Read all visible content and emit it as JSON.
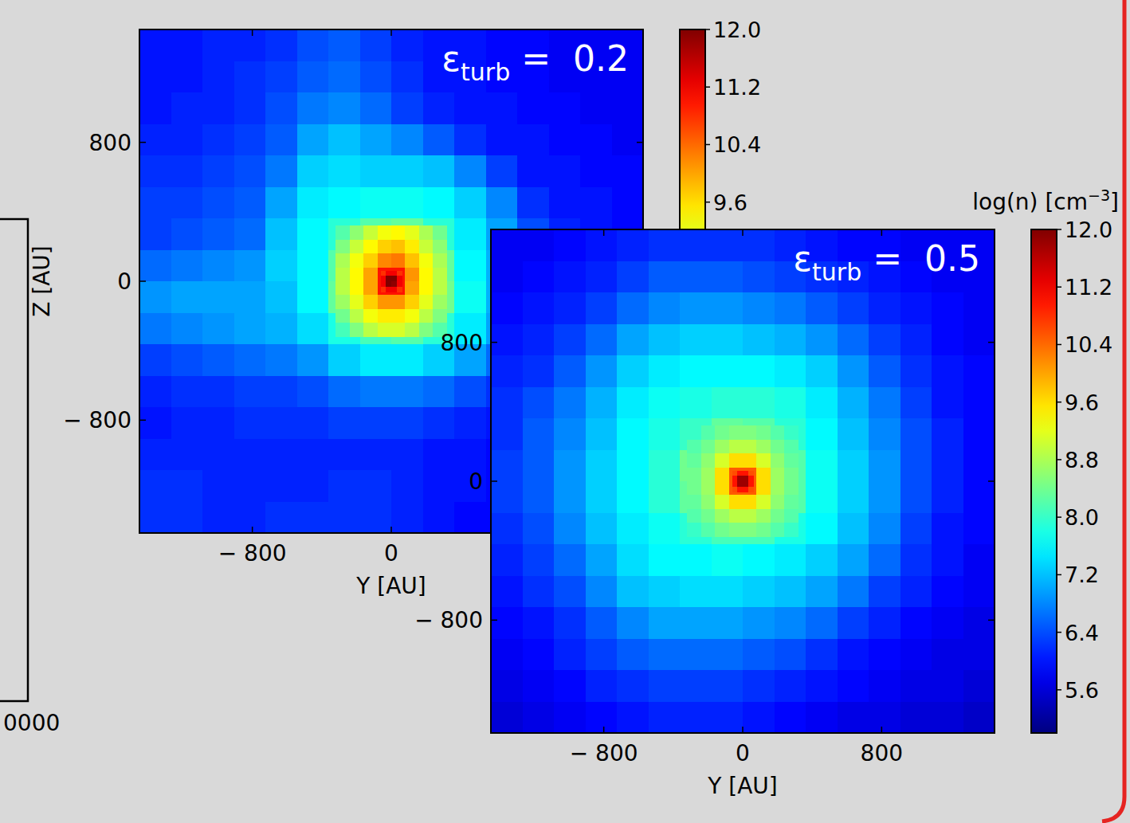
{
  "chart_data": [
    {
      "type": "heatmap",
      "title": {
        "main": "ε",
        "sub": "turb",
        "rest": " =  0.2"
      },
      "xlabel": "Y [AU]",
      "ylabel": "Z [AU]",
      "xlim": [
        -1450,
        1450
      ],
      "ylim": [
        -1450,
        1450
      ],
      "xticks": [
        {
          "value": -800,
          "label": "− 800"
        },
        0
      ],
      "yticks": [
        800,
        0,
        {
          "value": -800,
          "label": "− 800"
        }
      ],
      "colorbar": {
        "range": [
          5,
          12
        ],
        "ticks": [
          {
            "value": 12,
            "label": "12.0"
          },
          11.2,
          10.4,
          9.6
        ]
      },
      "layers": [
        {
          "xlim": [
            -1450,
            1450
          ],
          "ylim": [
            -1450,
            1450
          ],
          "values": [
            [
              6.0,
              6.0,
              6.1,
              6.1,
              6.2,
              6.4,
              6.5,
              6.3,
              6.1,
              6.0,
              6.0,
              5.9,
              5.9,
              5.8,
              5.8,
              5.8
            ],
            [
              6.0,
              6.0,
              6.1,
              6.2,
              6.3,
              6.5,
              6.6,
              6.4,
              6.2,
              6.0,
              6.0,
              5.9,
              5.9,
              5.8,
              5.8,
              5.8
            ],
            [
              6.0,
              6.1,
              6.1,
              6.2,
              6.4,
              6.7,
              6.8,
              6.6,
              6.3,
              6.1,
              6.0,
              6.0,
              5.9,
              5.9,
              5.8,
              5.8
            ],
            [
              6.1,
              6.1,
              6.2,
              6.3,
              6.5,
              7.0,
              7.2,
              7.0,
              6.8,
              6.5,
              6.2,
              6.0,
              6.0,
              5.9,
              5.9,
              5.8
            ],
            [
              6.2,
              6.2,
              6.3,
              6.4,
              6.7,
              7.3,
              7.4,
              7.3,
              7.3,
              7.2,
              6.8,
              6.3,
              6.0,
              6.0,
              5.9,
              5.9
            ],
            [
              6.3,
              6.3,
              6.4,
              6.5,
              7.0,
              7.5,
              7.6,
              7.7,
              7.7,
              7.6,
              7.3,
              6.8,
              6.2,
              6.0,
              6.0,
              5.9
            ],
            [
              6.3,
              6.4,
              6.5,
              6.6,
              7.2,
              7.6,
              7.9,
              8.2,
              8.3,
              7.9,
              7.5,
              7.0,
              6.4,
              6.1,
              6.0,
              5.9
            ],
            [
              6.6,
              6.7,
              6.8,
              6.9,
              7.3,
              7.6,
              8.2,
              9.0,
              9.0,
              8.3,
              7.6,
              7.1,
              6.5,
              6.1,
              6.0,
              6.0
            ],
            [
              6.9,
              7.0,
              7.0,
              7.0,
              7.2,
              7.6,
              8.3,
              9.0,
              9.0,
              8.4,
              7.7,
              7.1,
              6.5,
              6.1,
              6.0,
              6.0
            ],
            [
              6.7,
              6.8,
              6.9,
              7.0,
              7.1,
              7.4,
              7.8,
              8.1,
              8.2,
              7.9,
              7.5,
              7.0,
              6.4,
              6.1,
              6.0,
              5.9
            ],
            [
              6.3,
              6.4,
              6.5,
              6.6,
              6.7,
              6.9,
              7.3,
              7.5,
              7.5,
              7.3,
              7.0,
              6.6,
              6.2,
              6.0,
              5.9,
              5.9
            ],
            [
              6.1,
              6.2,
              6.2,
              6.3,
              6.3,
              6.4,
              6.6,
              6.7,
              6.7,
              6.6,
              6.4,
              6.2,
              6.0,
              5.9,
              5.9,
              5.8
            ],
            [
              6.0,
              6.1,
              6.1,
              6.2,
              6.2,
              6.2,
              6.3,
              6.3,
              6.3,
              6.2,
              6.1,
              6.0,
              5.9,
              5.8,
              5.8,
              5.8
            ],
            [
              6.1,
              6.1,
              6.1,
              6.1,
              6.1,
              6.1,
              6.1,
              6.1,
              6.1,
              6.0,
              6.0,
              5.9,
              5.8,
              5.8,
              5.8,
              5.8
            ],
            [
              6.2,
              6.2,
              6.1,
              6.1,
              6.1,
              6.1,
              6.2,
              6.2,
              6.1,
              6.0,
              6.0,
              5.9,
              5.8,
              5.8,
              5.8,
              5.8
            ],
            [
              6.2,
              6.2,
              6.1,
              6.1,
              6.2,
              6.2,
              6.2,
              6.2,
              6.1,
              6.0,
              5.9,
              5.9,
              5.8,
              5.8,
              5.8,
              5.8
            ]
          ]
        },
        {
          "xlim": [
            -320,
            320
          ],
          "ylim": [
            -320,
            320
          ],
          "values": [
            [
              8.2,
              8.6,
              9.0,
              9.3,
              9.4,
              9.2,
              8.8,
              8.4
            ],
            [
              8.5,
              9.0,
              9.4,
              9.7,
              9.8,
              9.5,
              9.0,
              8.6
            ],
            [
              8.8,
              9.3,
              9.7,
              10.2,
              10.3,
              9.8,
              9.3,
              8.8
            ],
            [
              8.9,
              9.4,
              10.0,
              11.0,
              11.0,
              10.1,
              9.4,
              8.9
            ],
            [
              8.9,
              9.4,
              10.0,
              11.0,
              11.0,
              10.0,
              9.4,
              8.9
            ],
            [
              8.7,
              9.2,
              9.7,
              10.1,
              10.1,
              9.7,
              9.2,
              8.7
            ],
            [
              8.4,
              8.9,
              9.3,
              9.5,
              9.5,
              9.3,
              8.9,
              8.5
            ],
            [
              8.1,
              8.5,
              8.9,
              9.1,
              9.1,
              8.9,
              8.5,
              8.2
            ]
          ]
        },
        {
          "xlim": [
            -60,
            60
          ],
          "ylim": [
            -60,
            60
          ],
          "values": [
            [
              10.8,
              11.2,
              11.2,
              10.8
            ],
            [
              11.2,
              12.0,
              12.0,
              11.2
            ],
            [
              11.2,
              12.0,
              11.9,
              11.2
            ],
            [
              10.8,
              11.2,
              11.2,
              10.8
            ]
          ]
        }
      ]
    },
    {
      "type": "heatmap",
      "title": {
        "main": "ε",
        "sub": "turb",
        "rest": " =  0.5"
      },
      "xlabel": "Y [AU]",
      "xlim": [
        -1450,
        1450
      ],
      "ylim": [
        -1450,
        1450
      ],
      "xticks": [
        {
          "value": -800,
          "label": "− 800"
        },
        0,
        800
      ],
      "yticks": [
        800,
        0,
        {
          "value": -800,
          "label": "− 800"
        }
      ],
      "colorbar": {
        "range": [
          5,
          12
        ],
        "label": {
          "main": "log(n) [cm",
          "sup": "−3",
          "rest": "]"
        },
        "ticks": [
          {
            "value": 12,
            "label": "12.0"
          },
          11.2,
          10.4,
          9.6,
          8.8,
          {
            "value": 8,
            "label": "8.0"
          },
          7.2,
          6.4,
          5.6
        ]
      },
      "layers": [
        {
          "xlim": [
            -1450,
            1450
          ],
          "ylim": [
            -1450,
            1450
          ],
          "values": [
            [
              5.8,
              5.8,
              5.9,
              6.0,
              6.1,
              6.2,
              6.2,
              6.2,
              6.2,
              6.1,
              6.0,
              5.9,
              5.9,
              5.8,
              5.8,
              5.8
            ],
            [
              5.8,
              5.9,
              6.0,
              6.1,
              6.3,
              6.5,
              6.5,
              6.5,
              6.4,
              6.3,
              6.2,
              6.1,
              6.0,
              5.9,
              5.8,
              5.8
            ],
            [
              5.9,
              6.0,
              6.1,
              6.3,
              6.6,
              6.8,
              6.9,
              6.9,
              6.8,
              6.7,
              6.5,
              6.3,
              6.1,
              6.0,
              5.9,
              5.8
            ],
            [
              6.0,
              6.1,
              6.3,
              6.6,
              7.0,
              7.2,
              7.3,
              7.3,
              7.2,
              7.1,
              6.9,
              6.6,
              6.3,
              6.1,
              5.9,
              5.8
            ],
            [
              6.1,
              6.2,
              6.5,
              6.9,
              7.3,
              7.5,
              7.6,
              7.6,
              7.6,
              7.5,
              7.3,
              6.9,
              6.5,
              6.2,
              6.0,
              5.9
            ],
            [
              6.2,
              6.4,
              6.7,
              7.1,
              7.5,
              7.7,
              7.8,
              7.9,
              7.9,
              7.8,
              7.5,
              7.1,
              6.7,
              6.3,
              6.0,
              5.9
            ],
            [
              6.2,
              6.5,
              6.8,
              7.2,
              7.6,
              7.8,
              8.0,
              8.3,
              8.2,
              7.9,
              7.6,
              7.2,
              6.8,
              6.4,
              6.1,
              5.9
            ],
            [
              6.3,
              6.5,
              6.9,
              7.3,
              7.6,
              7.9,
              8.4,
              8.8,
              8.8,
              8.2,
              7.7,
              7.3,
              6.9,
              6.4,
              6.1,
              5.9
            ],
            [
              6.3,
              6.5,
              6.9,
              7.3,
              7.6,
              7.9,
              8.3,
              8.8,
              8.8,
              8.2,
              7.7,
              7.3,
              6.9,
              6.4,
              6.1,
              5.9
            ],
            [
              6.2,
              6.4,
              6.8,
              7.2,
              7.5,
              7.7,
              7.9,
              8.1,
              8.1,
              7.8,
              7.6,
              7.2,
              6.8,
              6.3,
              6.0,
              5.9
            ],
            [
              6.1,
              6.3,
              6.6,
              7.0,
              7.4,
              7.6,
              7.6,
              7.7,
              7.6,
              7.5,
              7.3,
              7.0,
              6.6,
              6.2,
              6.0,
              5.8
            ],
            [
              6.0,
              6.2,
              6.4,
              6.8,
              7.2,
              7.3,
              7.4,
              7.4,
              7.3,
              7.2,
              7.0,
              6.7,
              6.3,
              6.1,
              5.9,
              5.8
            ],
            [
              5.9,
              6.0,
              6.2,
              6.5,
              6.8,
              7.0,
              7.0,
              7.0,
              6.9,
              6.8,
              6.6,
              6.3,
              6.1,
              5.9,
              5.8,
              5.7
            ],
            [
              5.8,
              5.9,
              6.1,
              6.3,
              6.5,
              6.6,
              6.6,
              6.6,
              6.5,
              6.4,
              6.2,
              6.0,
              5.9,
              5.8,
              5.7,
              5.7
            ],
            [
              5.7,
              5.8,
              5.9,
              6.1,
              6.2,
              6.3,
              6.3,
              6.3,
              6.2,
              6.1,
              6.0,
              5.9,
              5.8,
              5.7,
              5.7,
              5.6
            ],
            [
              5.6,
              5.7,
              5.8,
              5.9,
              6.0,
              6.1,
              6.1,
              6.1,
              6.0,
              5.9,
              5.8,
              5.7,
              5.7,
              5.6,
              5.6,
              5.5
            ]
          ]
        },
        {
          "xlim": [
            -320,
            320
          ],
          "ylim": [
            -320,
            320
          ],
          "values": [
            [
              8.0,
              8.2,
              8.4,
              8.5,
              8.5,
              8.4,
              8.2,
              8.0
            ],
            [
              8.2,
              8.4,
              8.7,
              8.9,
              8.9,
              8.7,
              8.4,
              8.2
            ],
            [
              8.3,
              8.6,
              9.1,
              9.6,
              9.6,
              9.1,
              8.6,
              8.3
            ],
            [
              8.4,
              8.7,
              9.6,
              10.5,
              10.5,
              9.6,
              8.7,
              8.4
            ],
            [
              8.4,
              8.7,
              9.6,
              10.5,
              10.5,
              9.6,
              8.7,
              8.4
            ],
            [
              8.3,
              8.6,
              9.1,
              9.6,
              9.6,
              9.1,
              8.6,
              8.3
            ],
            [
              8.2,
              8.4,
              8.7,
              8.9,
              8.9,
              8.7,
              8.4,
              8.2
            ],
            [
              8.0,
              8.2,
              8.4,
              8.5,
              8.5,
              8.4,
              8.2,
              8.0
            ]
          ]
        },
        {
          "xlim": [
            -60,
            60
          ],
          "ylim": [
            -60,
            60
          ],
          "values": [
            [
              10.6,
              11.0,
              11.0,
              10.6
            ],
            [
              11.0,
              11.8,
              11.8,
              11.0
            ],
            [
              11.0,
              11.8,
              11.8,
              11.0
            ],
            [
              10.6,
              11.0,
              11.0,
              10.6
            ]
          ]
        }
      ]
    }
  ],
  "fragment": {
    "tick_label": "0000"
  }
}
